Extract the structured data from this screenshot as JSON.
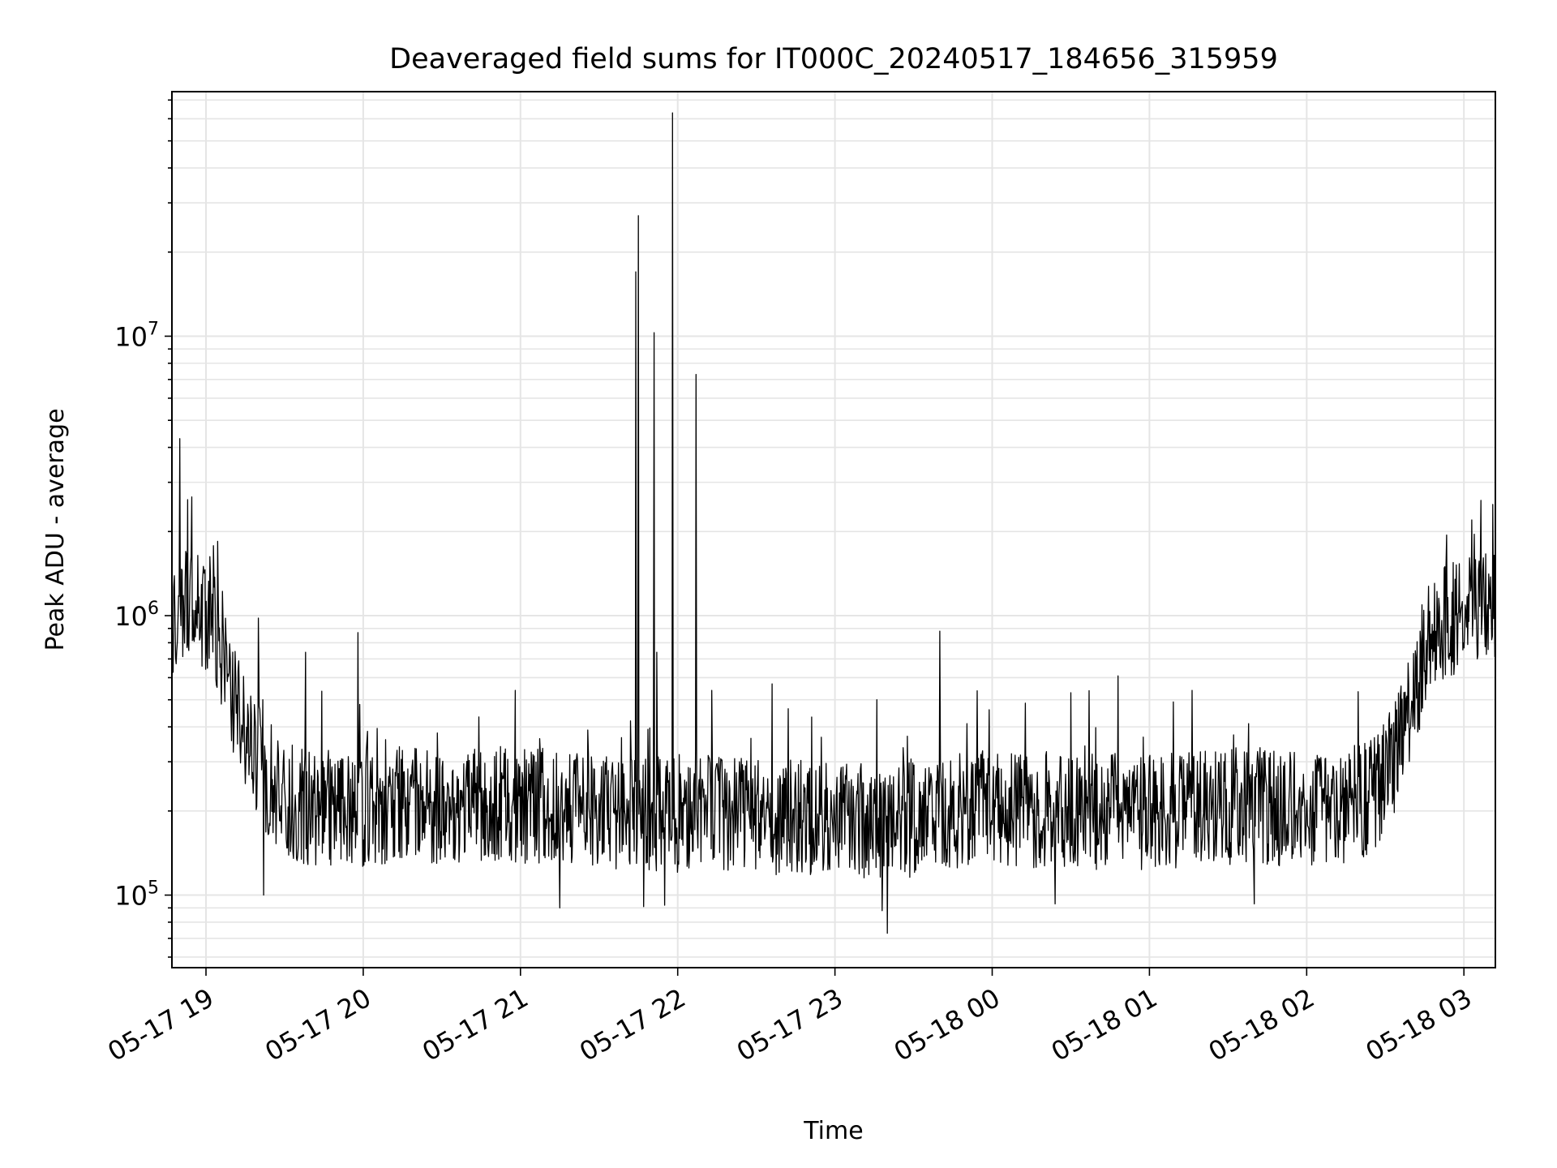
{
  "chart_data": {
    "type": "line",
    "title": "Deaveraged field sums for IT000C_20240517_184656_315959",
    "xlabel": "Time",
    "ylabel": "Peak ADU - average",
    "yscale": "log",
    "ylim": [
      55000,
      75000000
    ],
    "xlim": [
      "2024-05-17 18:47",
      "2024-05-18 03:12"
    ],
    "grid": true,
    "line_color": "#000000",
    "grid_color": "#e5e5e5",
    "x_tick_labels": [
      "05-17 19",
      "05-17 20",
      "05-17 21",
      "05-17 22",
      "05-17 23",
      "05-18 00",
      "05-18 01",
      "05-18 02",
      "05-18 03"
    ],
    "y_tick_labels": [
      {
        "value": 100000,
        "base": "10",
        "exp": "5"
      },
      {
        "value": 1000000,
        "base": "10",
        "exp": "6"
      },
      {
        "value": 10000000,
        "base": "10",
        "exp": "7"
      }
    ],
    "baseline": [
      [
        "2024-05-17 18:47",
        1000000
      ],
      [
        "2024-05-17 18:52",
        1150000
      ],
      [
        "2024-05-17 18:57",
        1100000
      ],
      [
        "2024-05-17 19:02",
        1000000
      ],
      [
        "2024-05-17 19:06",
        700000
      ],
      [
        "2024-05-17 19:12",
        450000
      ],
      [
        "2024-05-17 19:18",
        330000
      ],
      [
        "2024-05-17 19:24",
        260000
      ],
      [
        "2024-05-17 19:30",
        220000
      ],
      [
        "2024-05-17 19:40",
        205000
      ],
      [
        "2024-05-17 20:00",
        205000
      ],
      [
        "2024-05-17 20:30",
        210000
      ],
      [
        "2024-05-17 21:00",
        210000
      ],
      [
        "2024-05-17 21:30",
        200000
      ],
      [
        "2024-05-17 22:00",
        195000
      ],
      [
        "2024-05-17 22:30",
        190000
      ],
      [
        "2024-05-17 23:00",
        185000
      ],
      [
        "2024-05-17 23:20",
        180000
      ],
      [
        "2024-05-17 23:40",
        195000
      ],
      [
        "2024-05-18 00:00",
        205000
      ],
      [
        "2024-05-18 00:30",
        200000
      ],
      [
        "2024-05-18 01:00",
        200000
      ],
      [
        "2024-05-18 01:30",
        205000
      ],
      [
        "2024-05-18 02:00",
        200000
      ],
      [
        "2024-05-18 02:15",
        205000
      ],
      [
        "2024-05-18 02:25",
        230000
      ],
      [
        "2024-05-18 02:33",
        300000
      ],
      [
        "2024-05-18 02:40",
        480000
      ],
      [
        "2024-05-18 02:45",
        750000
      ],
      [
        "2024-05-18 02:50",
        950000
      ],
      [
        "2024-05-18 03:00",
        1000000
      ],
      [
        "2024-05-18 03:12",
        1150000
      ]
    ],
    "spikes": [
      [
        "2024-05-17 18:50",
        4300000
      ],
      [
        "2024-05-17 18:53",
        2600000
      ],
      [
        "2024-05-17 18:59",
        1500000
      ],
      [
        "2024-05-17 19:20",
        980000
      ],
      [
        "2024-05-17 19:38",
        740000
      ],
      [
        "2024-05-17 19:58",
        870000
      ],
      [
        "2024-05-17 20:58",
        540000
      ],
      [
        "2024-05-17 21:15",
        390000
      ],
      [
        "2024-05-17 21:42",
        420000
      ],
      [
        "2024-05-17 21:44",
        17000000
      ],
      [
        "2024-05-17 21:45",
        27000000
      ],
      [
        "2024-05-17 21:51",
        10300000
      ],
      [
        "2024-05-17 21:52",
        740000
      ],
      [
        "2024-05-17 21:58",
        63000000
      ],
      [
        "2024-05-17 22:07",
        7300000
      ],
      [
        "2024-05-17 22:13",
        540000
      ],
      [
        "2024-05-17 22:36",
        570000
      ],
      [
        "2024-05-17 23:16",
        500000
      ],
      [
        "2024-05-17 23:40",
        880000
      ],
      [
        "2024-05-18 00:30",
        530000
      ],
      [
        "2024-05-18 02:36",
        560000
      ],
      [
        "2024-05-18 03:03",
        2200000
      ],
      [
        "2024-05-18 03:11",
        2500000
      ]
    ],
    "dips": [
      [
        "2024-05-17 19:22",
        100000
      ],
      [
        "2024-05-17 21:15",
        90000
      ],
      [
        "2024-05-17 21:47",
        91000
      ],
      [
        "2024-05-17 21:55",
        92000
      ],
      [
        "2024-05-17 23:18",
        88000
      ],
      [
        "2024-05-17 23:20",
        73000
      ],
      [
        "2024-05-18 00:24",
        93000
      ],
      [
        "2024-05-18 01:40",
        93000
      ]
    ]
  }
}
